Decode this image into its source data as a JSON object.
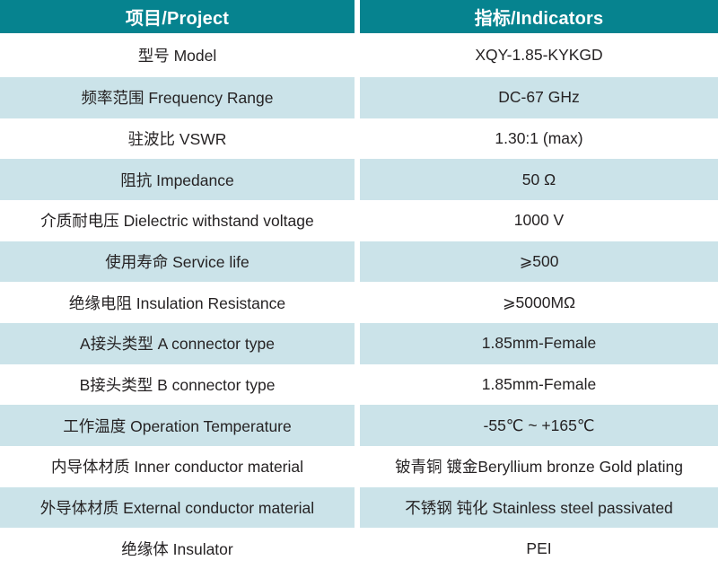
{
  "table": {
    "header": {
      "project": "项目/Project",
      "indicators": "指标/Indicators"
    },
    "rows": [
      {
        "project": "型号 Model",
        "indicator": "XQY-1.85-KYKGD"
      },
      {
        "project": "频率范围 Frequency Range",
        "indicator": "DC-67 GHz"
      },
      {
        "project": "驻波比 VSWR",
        "indicator": "1.30:1 (max)"
      },
      {
        "project": "阻抗 Impedance",
        "indicator": "50 Ω"
      },
      {
        "project": "介质耐电压 Dielectric withstand voltage",
        "indicator": "1000 V"
      },
      {
        "project": "使用寿命 Service life",
        "indicator": "⩾500"
      },
      {
        "project": "绝缘电阻 Insulation Resistance",
        "indicator": "⩾5000MΩ"
      },
      {
        "project": "A接头类型 A connector type",
        "indicator": "1.85mm-Female"
      },
      {
        "project": "B接头类型 B connector type",
        "indicator": "1.85mm-Female"
      },
      {
        "project": "工作温度 Operation Temperature",
        "indicator": "-55℃ ~ +165℃"
      },
      {
        "project": "内导体材质 Inner conductor material",
        "indicator": "铍青铜 镀金Beryllium bronze Gold plating"
      },
      {
        "project": "外导体材质 External conductor material",
        "indicator": "不锈钢 钝化 Stainless steel passivated"
      },
      {
        "project": "绝缘体 Insulator",
        "indicator": "PEI"
      }
    ],
    "colors": {
      "header_bg": "#06838f",
      "header_text": "#ffffff",
      "row_alt_bg": "#cbe3e9",
      "body_text": "#262324",
      "gutter": "#ffffff"
    }
  }
}
